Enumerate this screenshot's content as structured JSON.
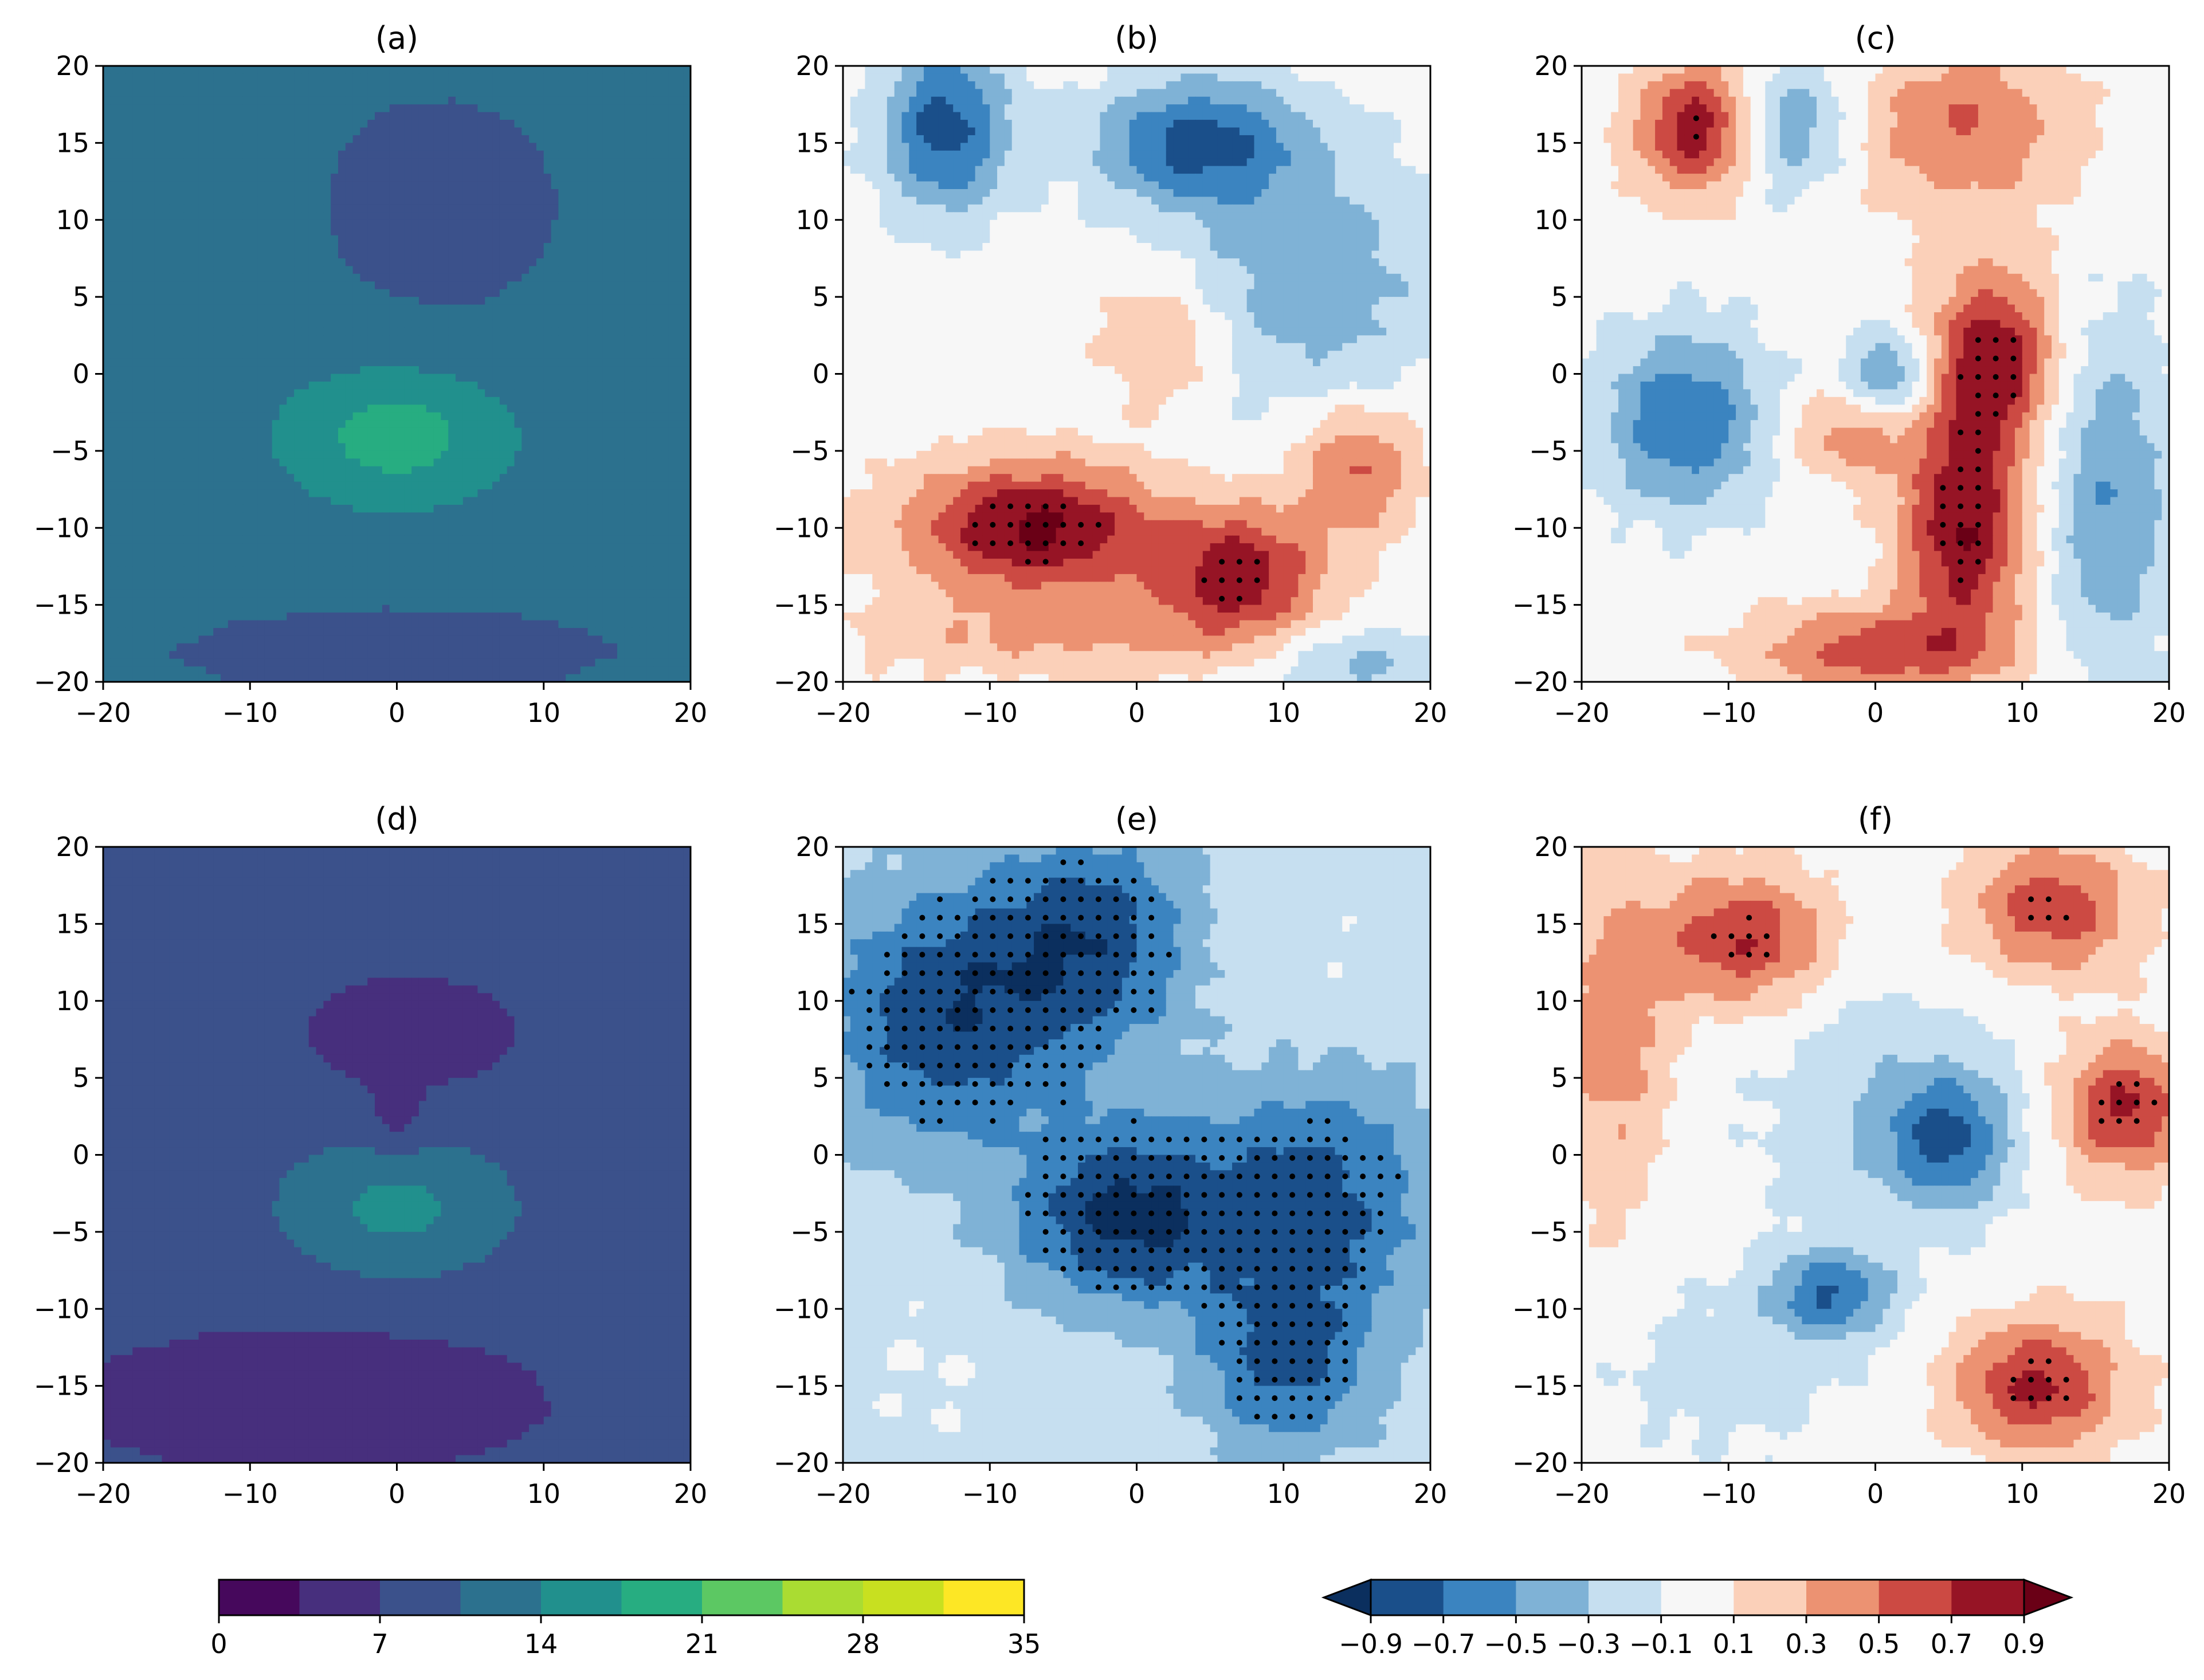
{
  "chart_data": [
    {
      "type": "heatmap",
      "title": "(a)",
      "colormap": "viridis",
      "xlim": [
        -20,
        20
      ],
      "ylim": [
        -20,
        20
      ],
      "xticks": [
        -20,
        -10,
        0,
        10,
        20
      ],
      "yticks": [
        -20,
        -15,
        -10,
        -5,
        0,
        5,
        10,
        15,
        20
      ],
      "grid": false,
      "levels": [
        0,
        3.5,
        7,
        10.5,
        14,
        17.5,
        21
      ],
      "base_value": 12.5,
      "blobs": [
        {
          "x": 3,
          "y": 11,
          "sx": 8,
          "sy": 7,
          "amp": -3.2
        },
        {
          "x": 0,
          "y": -18,
          "sx": 22,
          "sy": 4,
          "amp": -2.5
        },
        {
          "x": 0,
          "y": -4,
          "sx": 5,
          "sy": 3,
          "amp": 7
        }
      ]
    },
    {
      "type": "heatmap",
      "title": "(b)",
      "colormap": "RdBu_r",
      "xlim": [
        -20,
        20
      ],
      "ylim": [
        -20,
        20
      ],
      "xticks": [
        -20,
        -10,
        0,
        10,
        20
      ],
      "yticks": [
        -20,
        -15,
        -10,
        -5,
        0,
        5,
        10,
        15,
        20
      ],
      "grid": false,
      "levels": [
        -0.9,
        -0.7,
        -0.5,
        -0.3,
        -0.1,
        0.1,
        0.3,
        0.5,
        0.7,
        0.9
      ],
      "blobs": [
        {
          "x": -13,
          "y": 16,
          "sx": 3,
          "sy": 4,
          "amp": -0.8
        },
        {
          "x": 4,
          "y": 15,
          "sx": 5,
          "sy": 3,
          "amp": -0.75
        },
        {
          "x": 12,
          "y": 6,
          "sx": 6,
          "sy": 6,
          "amp": -0.45
        },
        {
          "x": -7,
          "y": -10,
          "sx": 6,
          "sy": 3,
          "amp": 0.95
        },
        {
          "x": 7,
          "y": -13,
          "sx": 4,
          "sy": 3,
          "amp": 0.8
        },
        {
          "x": 15,
          "y": -6,
          "sx": 3,
          "sy": 3,
          "amp": 0.55
        },
        {
          "x": 2,
          "y": 2,
          "sx": 3,
          "sy": 3,
          "amp": 0.35
        },
        {
          "x": -5,
          "y": -17,
          "sx": 10,
          "sy": 2,
          "amp": 0.3
        },
        {
          "x": 15,
          "y": -19,
          "sx": 5,
          "sy": 2,
          "amp": -0.35
        }
      ],
      "stipple_threshold": 0.75
    },
    {
      "type": "heatmap",
      "title": "(c)",
      "colormap": "RdBu_r",
      "xlim": [
        -20,
        20
      ],
      "ylim": [
        -20,
        20
      ],
      "xticks": [
        -20,
        -10,
        0,
        10,
        20
      ],
      "yticks": [
        -20,
        -15,
        -10,
        -5,
        0,
        5,
        10,
        15,
        20
      ],
      "grid": false,
      "levels": [
        -0.9,
        -0.7,
        -0.5,
        -0.3,
        -0.1,
        0.1,
        0.3,
        0.5,
        0.7,
        0.9
      ],
      "blobs": [
        {
          "x": -12,
          "y": 16,
          "sx": 3,
          "sy": 3,
          "amp": 0.85
        },
        {
          "x": 8,
          "y": 1,
          "sx": 3,
          "sy": 4,
          "amp": 0.85
        },
        {
          "x": 6,
          "y": -10,
          "sx": 3,
          "sy": 5,
          "amp": 0.9
        },
        {
          "x": 0,
          "y": -18,
          "sx": 6,
          "sy": 2,
          "amp": 0.6
        },
        {
          "x": -13,
          "y": -3,
          "sx": 4,
          "sy": 4,
          "amp": -0.7
        },
        {
          "x": -6,
          "y": 16,
          "sx": 3,
          "sy": 3,
          "amp": -0.5
        },
        {
          "x": 1,
          "y": 0,
          "sx": 2,
          "sy": 2,
          "amp": -0.55
        },
        {
          "x": 16,
          "y": -8,
          "sx": 3,
          "sy": 8,
          "amp": -0.5
        },
        {
          "x": -2,
          "y": -4,
          "sx": 3,
          "sy": 2,
          "amp": 0.4
        },
        {
          "x": 6,
          "y": 16,
          "sx": 5,
          "sy": 4,
          "amp": 0.5
        }
      ],
      "stipple_threshold": 0.75
    },
    {
      "type": "heatmap",
      "title": "(d)",
      "colormap": "viridis",
      "xlim": [
        -20,
        20
      ],
      "ylim": [
        -20,
        20
      ],
      "xticks": [
        -20,
        -10,
        0,
        10,
        20
      ],
      "yticks": [
        -20,
        -15,
        -10,
        -5,
        0,
        5,
        10,
        15,
        20
      ],
      "grid": false,
      "levels": [
        0,
        3.5,
        7,
        10.5,
        14,
        17.5,
        21
      ],
      "base_value": 9,
      "blobs": [
        {
          "x": 1,
          "y": 8,
          "sx": 6,
          "sy": 3,
          "amp": -4
        },
        {
          "x": 0,
          "y": 2,
          "sx": 1.6,
          "sy": 1.6,
          "amp": -3
        },
        {
          "x": -6,
          "y": -16,
          "sx": 14,
          "sy": 4,
          "amp": -4
        },
        {
          "x": 0,
          "y": -3.5,
          "sx": 5,
          "sy": 3,
          "amp": 6
        }
      ]
    },
    {
      "type": "heatmap",
      "title": "(e)",
      "colormap": "RdBu_r",
      "xlim": [
        -20,
        20
      ],
      "ylim": [
        -20,
        20
      ],
      "xticks": [
        -20,
        -10,
        0,
        10,
        20
      ],
      "yticks": [
        -20,
        -15,
        -10,
        -5,
        0,
        5,
        10,
        15,
        20
      ],
      "grid": false,
      "levels": [
        -0.9,
        -0.7,
        -0.5,
        -0.3,
        -0.1,
        0.1,
        0.3,
        0.5,
        0.7,
        0.9
      ],
      "blobs": [
        {
          "x": -13,
          "y": 9,
          "sx": 6,
          "sy": 6,
          "amp": -0.65
        },
        {
          "x": -3,
          "y": 14,
          "sx": 5,
          "sy": 5,
          "amp": -0.6
        },
        {
          "x": -1,
          "y": -4,
          "sx": 5,
          "sy": 4,
          "amp": -0.75
        },
        {
          "x": 12,
          "y": -3,
          "sx": 6,
          "sy": 6,
          "amp": -0.6
        },
        {
          "x": 10,
          "y": -14,
          "sx": 4,
          "sy": 4,
          "amp": -0.5
        },
        {
          "x": 12,
          "y": 10,
          "sx": 6,
          "sy": 5,
          "amp": 0.08
        },
        {
          "x": -14,
          "y": -14,
          "sx": 4,
          "sy": 4,
          "amp": 0.08
        }
      ],
      "base_value": -0.18,
      "stipple_threshold": -0.55
    },
    {
      "type": "heatmap",
      "title": "(f)",
      "colormap": "RdBu_r",
      "xlim": [
        -20,
        20
      ],
      "ylim": [
        -20,
        20
      ],
      "xticks": [
        -20,
        -10,
        0,
        10,
        20
      ],
      "yticks": [
        -20,
        -15,
        -10,
        -5,
        0,
        5,
        10,
        15,
        20
      ],
      "grid": false,
      "levels": [
        -0.9,
        -0.7,
        -0.5,
        -0.3,
        -0.1,
        0.1,
        0.3,
        0.5,
        0.7,
        0.9
      ],
      "blobs": [
        {
          "x": -9,
          "y": 14,
          "sx": 4,
          "sy": 3,
          "amp": 0.7
        },
        {
          "x": 12,
          "y": 16,
          "sx": 4,
          "sy": 3,
          "amp": 0.65
        },
        {
          "x": 17,
          "y": 3,
          "sx": 3,
          "sy": 3,
          "amp": 0.75
        },
        {
          "x": 11,
          "y": -15,
          "sx": 4,
          "sy": 3,
          "amp": 0.75
        },
        {
          "x": 5,
          "y": 1,
          "sx": 3,
          "sy": 3,
          "amp": -0.65
        },
        {
          "x": -3,
          "y": -9,
          "sx": 3,
          "sy": 2,
          "amp": -0.65
        },
        {
          "x": 0,
          "y": 3,
          "sx": 6,
          "sy": 6,
          "amp": -0.25
        },
        {
          "x": -18,
          "y": 8,
          "sx": 3,
          "sy": 8,
          "amp": 0.4
        },
        {
          "x": -10,
          "y": -14,
          "sx": 6,
          "sy": 4,
          "amp": -0.2
        }
      ],
      "stipple_threshold": 0.6
    }
  ],
  "colorbars": [
    {
      "colormap": "viridis",
      "ticks": [
        "0",
        "7",
        "14",
        "21",
        "28",
        "35"
      ],
      "min": 0,
      "max": 35,
      "n_bins": 10,
      "extend": "neither"
    },
    {
      "colormap": "RdBu_r",
      "ticks": [
        "−0.9",
        "−0.7",
        "−0.5",
        "−0.3",
        "−0.1",
        "0.1",
        "0.3",
        "0.5",
        "0.7",
        "0.9"
      ],
      "colors": [
        "#1a4f8a",
        "#3b84c0",
        "#7fb2d6",
        "#c6dff0",
        "#f7f7f7",
        "#fbd0b9",
        "#ec9272",
        "#cc4a43",
        "#961425"
      ],
      "under_color": "#0b2f5e",
      "over_color": "#6a0016",
      "extend": "both"
    }
  ],
  "colors": {
    "viridis_bins": [
      "#46085c",
      "#472f7d",
      "#3b518b",
      "#2c718e",
      "#21908d",
      "#27ad81",
      "#5cc863",
      "#aadc32",
      "#c8e020",
      "#fde725"
    ],
    "rdbu_bins": [
      "#0b2f5e",
      "#1a4f8a",
      "#3b84c0",
      "#7fb2d6",
      "#c6dff0",
      "#f7f7f7",
      "#fbd0b9",
      "#ec9272",
      "#cc4a43",
      "#961425",
      "#6a0016"
    ]
  }
}
